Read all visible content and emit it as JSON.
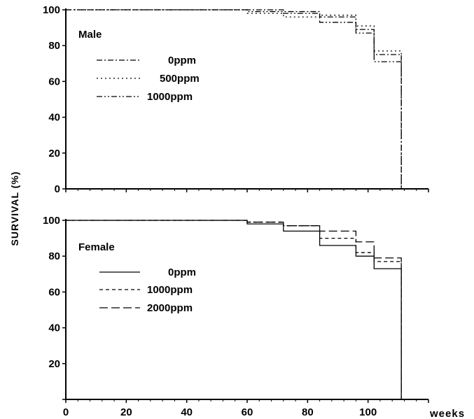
{
  "chart_data": [
    {
      "type": "line",
      "title": "Male",
      "xlabel": "",
      "ylabel": "SURVIVAL (%)",
      "xlim": [
        0,
        120
      ],
      "ylim": [
        0,
        100
      ],
      "yticks": [
        "0",
        "20",
        "40",
        "60",
        "80",
        "100"
      ],
      "xticks": [],
      "step": true,
      "series": [
        {
          "name": "0ppm",
          "linestyle": "dash-dot",
          "x": [
            0,
            72,
            84,
            96,
            102,
            111
          ],
          "y": [
            100,
            99,
            96,
            89,
            75,
            0
          ]
        },
        {
          "name": "500ppm",
          "linestyle": "dotted",
          "x": [
            0,
            60,
            72,
            84,
            96,
            102,
            111
          ],
          "y": [
            100,
            98,
            96,
            97,
            91,
            77,
            0
          ]
        },
        {
          "name": "1000ppm",
          "linestyle": "dash-dot-dot",
          "x": [
            0,
            60,
            72,
            84,
            96,
            102,
            111
          ],
          "y": [
            100,
            99,
            98,
            93,
            87,
            71,
            0
          ]
        }
      ]
    },
    {
      "type": "line",
      "title": "Female",
      "xlabel": "weeks",
      "ylabel": "SURVIVAL (%)",
      "xlim": [
        0,
        120
      ],
      "ylim": [
        0,
        100
      ],
      "yticks": [
        "",
        "20",
        "40",
        "60",
        "80",
        "100"
      ],
      "xticks": [
        "0",
        "20",
        "40",
        "60",
        "80",
        "100"
      ],
      "step": true,
      "series": [
        {
          "name": "0ppm",
          "linestyle": "solid",
          "x": [
            0,
            60,
            72,
            84,
            96,
            102,
            111
          ],
          "y": [
            100,
            98,
            94,
            86,
            80,
            73,
            0
          ]
        },
        {
          "name": "1000ppm",
          "linestyle": "dashed",
          "x": [
            0,
            60,
            72,
            84,
            96,
            102,
            111
          ],
          "y": [
            100,
            99,
            97,
            90,
            82,
            77,
            0
          ]
        },
        {
          "name": "2000ppm",
          "linestyle": "long-dash",
          "x": [
            0,
            60,
            72,
            84,
            96,
            102,
            111
          ],
          "y": [
            100,
            99,
            97,
            94,
            88,
            79,
            0
          ]
        }
      ]
    }
  ]
}
